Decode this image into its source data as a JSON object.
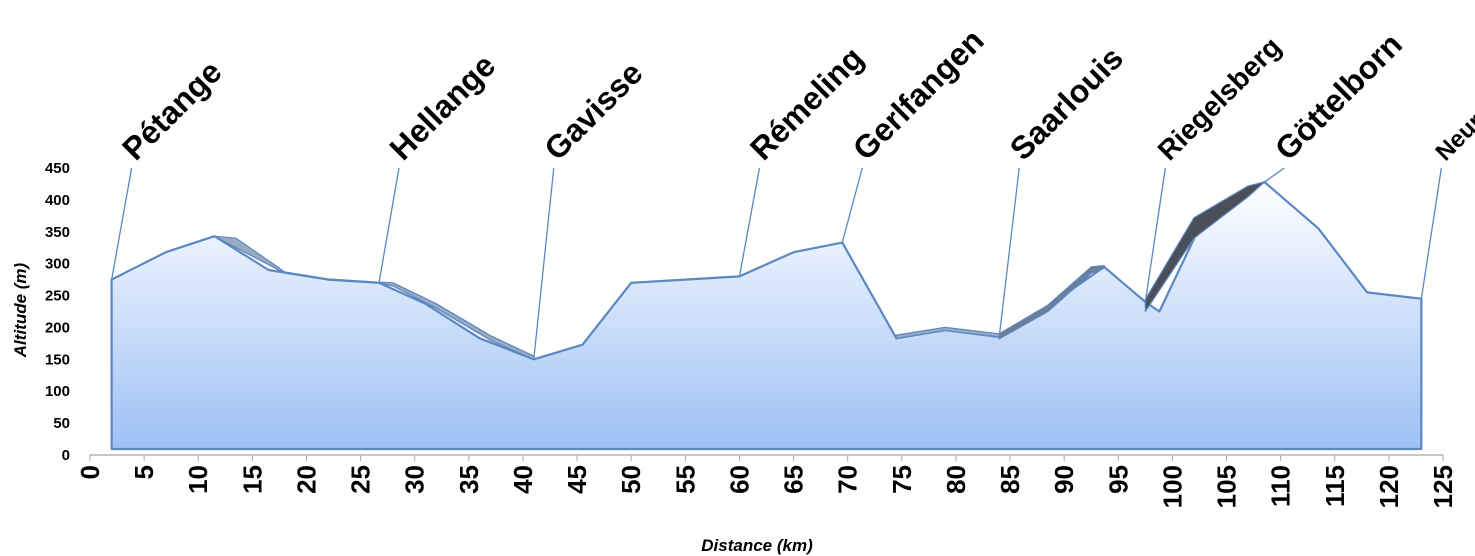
{
  "chart_data": {
    "type": "area",
    "xlabel": "Distance (km)",
    "ylabel": "Altitude (m)",
    "xlim": [
      0,
      125
    ],
    "ylim": [
      0,
      450
    ],
    "x_ticks": [
      0,
      5,
      10,
      15,
      20,
      25,
      30,
      35,
      40,
      45,
      50,
      55,
      60,
      65,
      70,
      75,
      80,
      85,
      90,
      95,
      100,
      105,
      110,
      115,
      120,
      125
    ],
    "y_ticks": [
      0,
      50,
      100,
      150,
      200,
      250,
      300,
      350,
      400,
      450
    ],
    "fill_top_color": "#ffffff",
    "fill_bottom_color": "#9dc0f5",
    "line_color": "#5b87c2",
    "series": [
      {
        "x": [
          2,
          7,
          11.5,
          16.5,
          22,
          26.7,
          31,
          36,
          41,
          45.5,
          50,
          55,
          60,
          65,
          69.5,
          74.5,
          79,
          84,
          88.5,
          93.7,
          97.5,
          98.8,
          103,
          108.5,
          113.5,
          118,
          123
        ],
        "y": [
          275,
          318,
          343,
          290,
          275,
          270,
          237,
          183,
          150,
          173,
          270,
          275,
          280,
          318,
          333,
          183,
          196,
          185,
          233,
          295,
          240,
          225,
          375,
          428,
          355,
          255,
          245
        ]
      }
    ],
    "ribbons": [
      {
        "x": [
          11.5,
          13.5,
          18,
          22,
          26.7
        ],
        "upper": [
          343,
          340,
          287,
          276,
          271
        ],
        "lower": [
          343,
          325,
          285,
          275,
          270
        ],
        "color": "#9aabc2"
      },
      {
        "x": [
          26.7,
          28,
          32,
          37,
          41
        ],
        "upper": [
          271,
          270,
          237,
          187,
          155
        ],
        "lower": [
          270,
          265,
          230,
          180,
          150
        ],
        "color": "#9aabc2"
      },
      {
        "x": [
          74.5,
          79,
          84
        ],
        "upper": [
          188,
          200,
          190
        ],
        "lower": [
          183,
          195,
          185
        ],
        "color": "#9aabc2"
      },
      {
        "x": [
          84,
          88.5,
          92.5,
          93.7
        ],
        "upper": [
          190,
          235,
          295,
          297
        ],
        "lower": [
          182,
          225,
          285,
          293
        ],
        "color": "#6b7e9a"
      },
      {
        "x": [
          97.5,
          102,
          107,
          108.5
        ],
        "upper": [
          244,
          372,
          422,
          428
        ],
        "lower": [
          225,
          340,
          405,
          428
        ],
        "color": "#4a4f58"
      }
    ],
    "annotations": [
      {
        "label": "Pétange",
        "x": 2,
        "y": 275,
        "size": 32
      },
      {
        "label": "Hellange",
        "x": 26.7,
        "y": 270,
        "size": 32
      },
      {
        "label": "Gavisse",
        "x": 41,
        "y": 150,
        "size": 32
      },
      {
        "label": "Rémeling",
        "x": 60,
        "y": 280,
        "size": 32
      },
      {
        "label": "Gerlfangen",
        "x": 69.5,
        "y": 333,
        "size": 32
      },
      {
        "label": "Saarlouis",
        "x": 84,
        "y": 185,
        "size": 32
      },
      {
        "label": "Riegelsberg",
        "x": 97.5,
        "y": 240,
        "size": 28
      },
      {
        "label": "Göttelborn",
        "x": 108.5,
        "y": 428,
        "size": 32
      },
      {
        "label": "Neunkirchen",
        "x": 123,
        "y": 245,
        "size": 24
      }
    ]
  }
}
